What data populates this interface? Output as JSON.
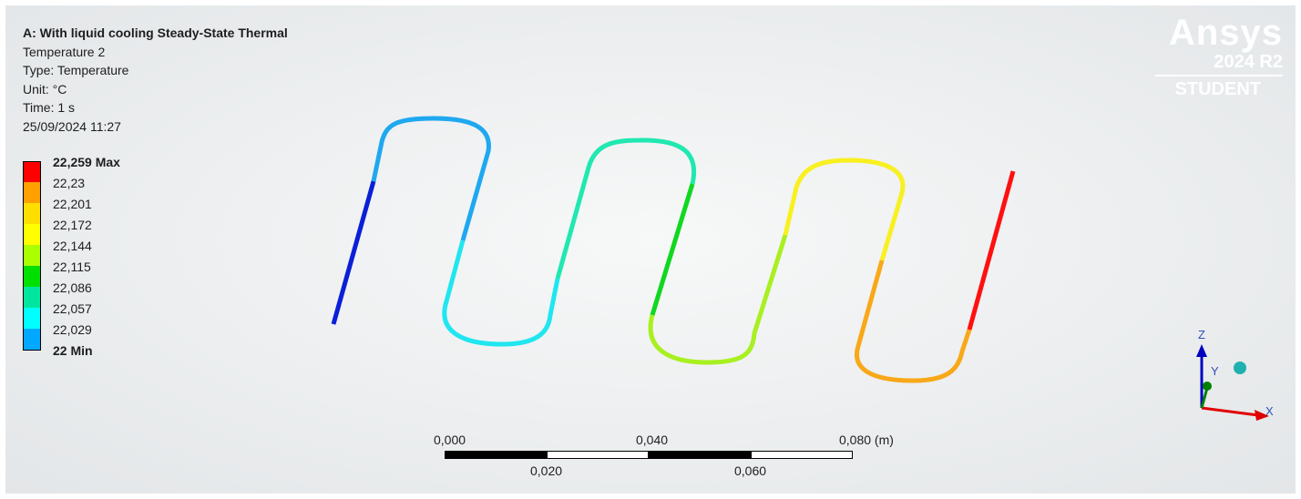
{
  "info": {
    "title": "A: With liquid cooling Steady-State Thermal",
    "result_name": "Temperature 2",
    "type": "Type: Temperature",
    "unit": "Unit: °C",
    "time": "Time: 1 s",
    "timestamp": "25/09/2024 11:27"
  },
  "legend": {
    "labels": [
      "22,259 Max",
      "22,23",
      "22,201",
      "22,172",
      "22,144",
      "22,115",
      "22,086",
      "22,057",
      "22,029",
      "22 Min"
    ],
    "colors": [
      "#ff0000",
      "#ff9f00",
      "#ffdf00",
      "#ffff00",
      "#aaff00",
      "#00e000",
      "#00e6a0",
      "#00ffff",
      "#00a8ff",
      "#0000e0"
    ]
  },
  "logo": {
    "brand": "Ansys",
    "version": "2024 R2",
    "edition": "STUDENT"
  },
  "scale_bar": {
    "top_labels": [
      "0,000",
      "0,040",
      "0,080 (m)"
    ],
    "bottom_labels": [
      "0,020",
      "0,060"
    ]
  },
  "triad": {
    "x_label": "X",
    "y_label": "Y",
    "z_label": "Z",
    "x_color": "#e00000",
    "y_color": "#008000",
    "z_color": "#0000c0",
    "iso_ball_color": "#20b0b0"
  },
  "pipe_colors": {
    "deep_blue": "#0a1fd8",
    "light_blue": "#1fa8f0",
    "cyan": "#20e6f0",
    "aqua_green": "#20e8b0",
    "green": "#10d820",
    "yellow_green": "#a8f020",
    "yellow": "#f8f020",
    "orange": "#f8a818",
    "red": "#ff1010"
  }
}
